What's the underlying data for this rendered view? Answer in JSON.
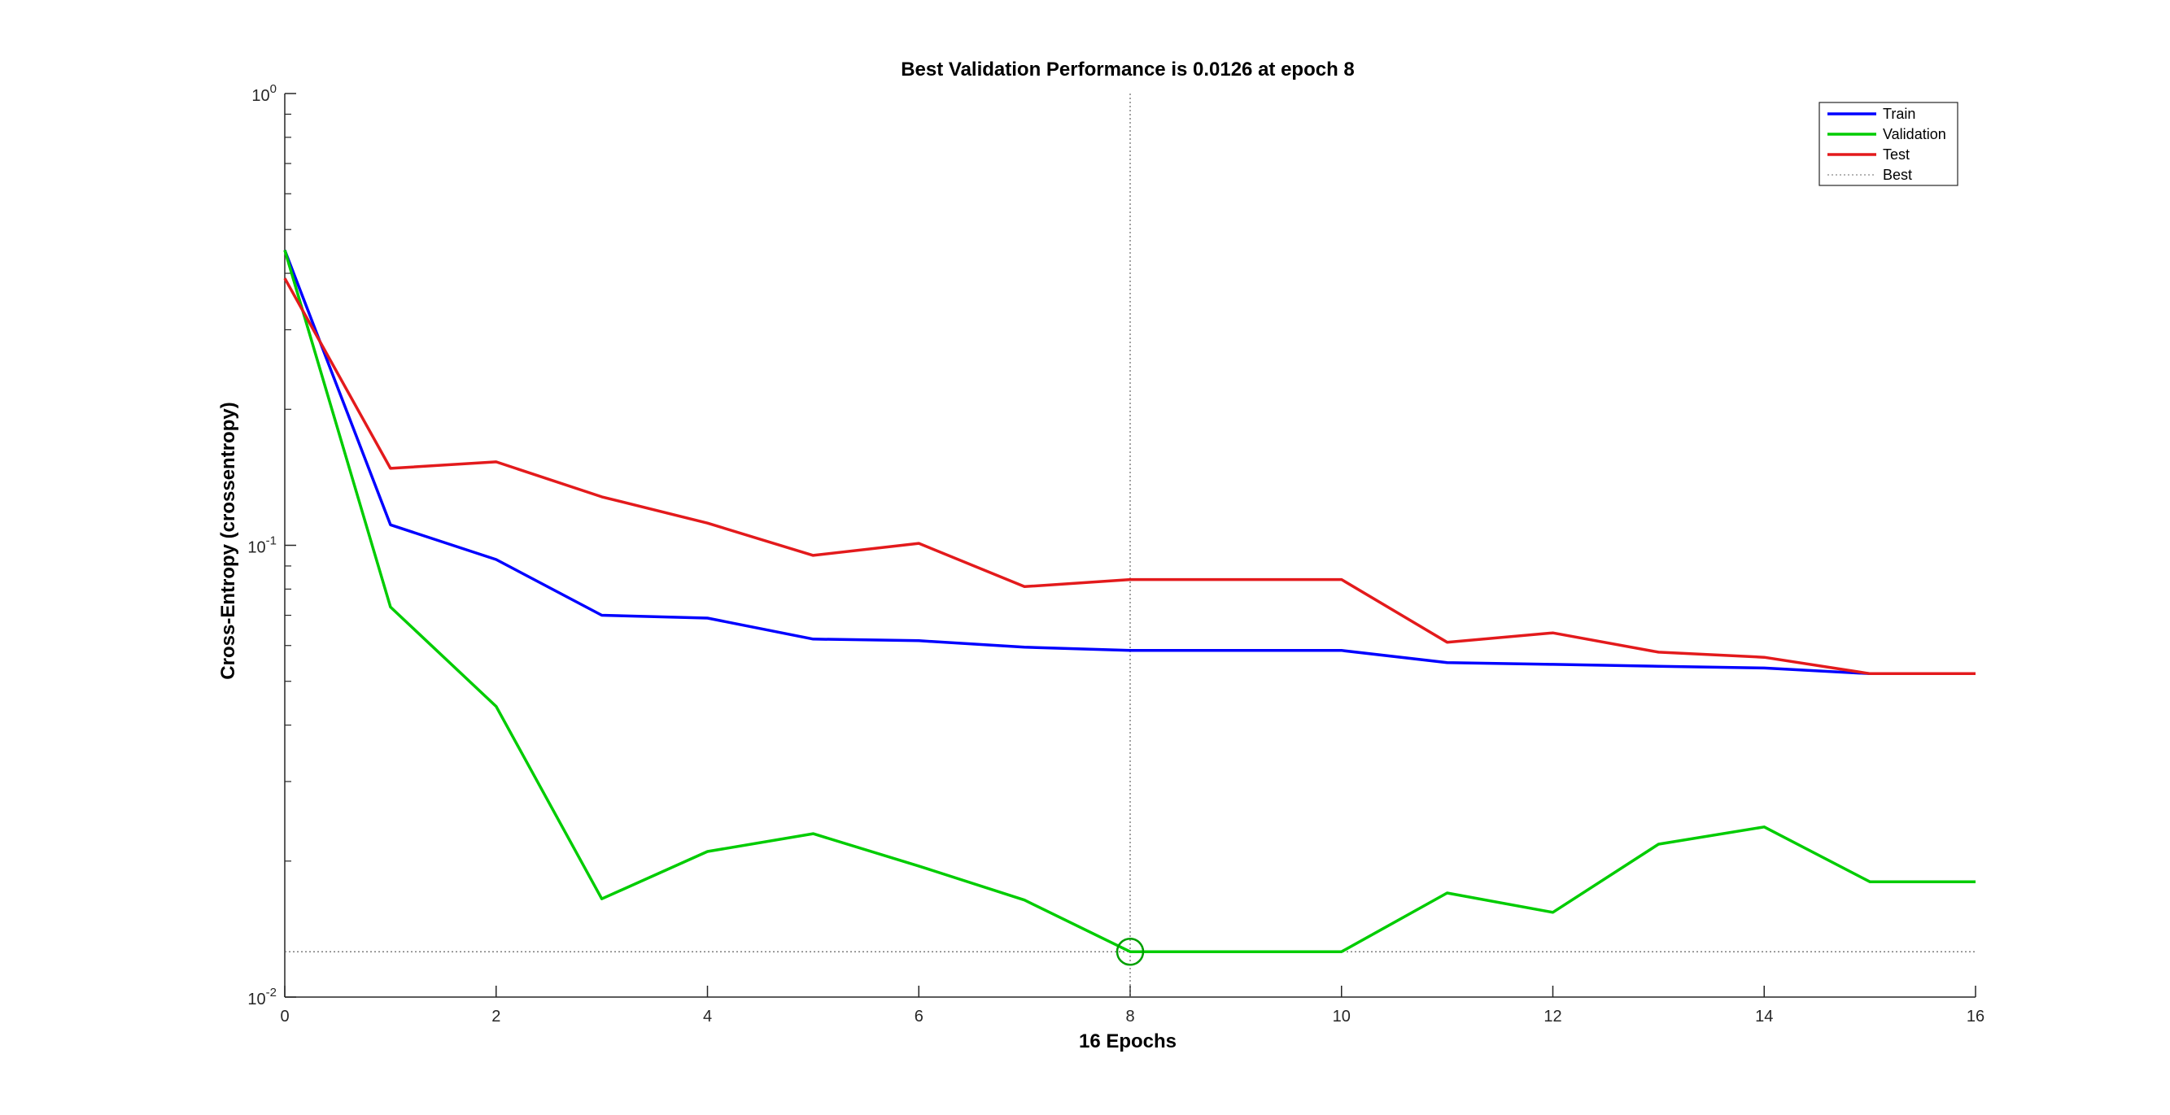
{
  "chart_data": {
    "type": "line",
    "title": "Best Validation Performance is 0.0126 at epoch 8",
    "xlabel": "16 Epochs",
    "ylabel": "Cross-Entropy  (crossentropy)",
    "xlim": [
      0,
      16
    ],
    "ylim": [
      0.01,
      1
    ],
    "yscale": "log",
    "x_ticks": [
      "0",
      "2",
      "4",
      "6",
      "8",
      "10",
      "12",
      "14",
      "16"
    ],
    "y_ticks": [
      {
        "value": 1,
        "base": "10",
        "exp": "0"
      },
      {
        "value": 0.1,
        "base": "10",
        "exp": "-1"
      },
      {
        "value": 0.01,
        "base": "10",
        "exp": "-2"
      }
    ],
    "legend_position": "top-right",
    "x": [
      0,
      1,
      2,
      3,
      4,
      5,
      6,
      7,
      8,
      9,
      10,
      11,
      12,
      13,
      14,
      15,
      16
    ],
    "series": [
      {
        "name": "Train",
        "color": "#0000ff",
        "values": [
          0.45,
          0.111,
          0.093,
          0.07,
          0.069,
          0.062,
          0.0615,
          0.0595,
          0.0585,
          0.0585,
          0.0585,
          0.055,
          0.0545,
          0.054,
          0.0535,
          0.052,
          0.052
        ]
      },
      {
        "name": "Validation",
        "color": "#00cc00",
        "values": [
          0.45,
          0.073,
          0.044,
          0.0165,
          0.021,
          0.023,
          0.0195,
          0.0164,
          0.0126,
          0.0126,
          0.0126,
          0.017,
          0.0154,
          0.0218,
          0.0238,
          0.018,
          0.018
        ]
      },
      {
        "name": "Test",
        "color": "#e31a1c",
        "values": [
          0.39,
          0.148,
          0.153,
          0.128,
          0.112,
          0.095,
          0.101,
          0.081,
          0.084,
          0.084,
          0.084,
          0.061,
          0.064,
          0.058,
          0.0565,
          0.052,
          0.052
        ]
      }
    ],
    "best": {
      "name": "Best",
      "epoch": 8,
      "value": 0.0126,
      "marker_color": "#00a000"
    }
  }
}
